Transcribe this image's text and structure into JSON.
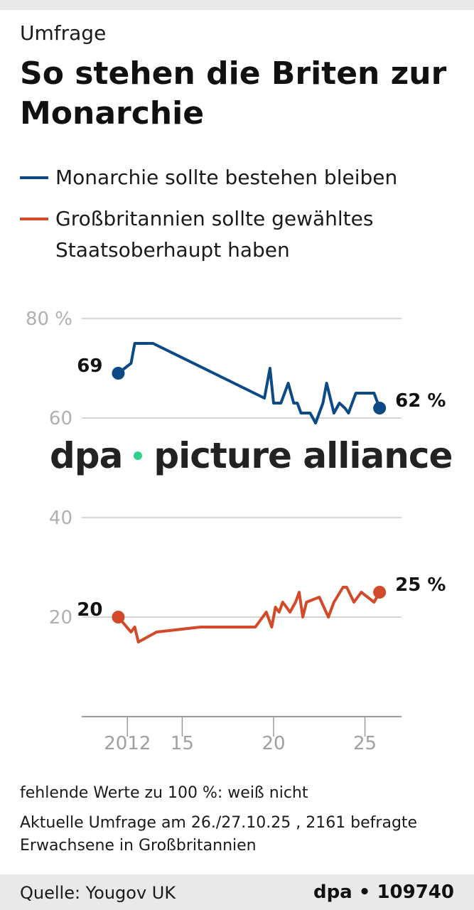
{
  "kicker": "Umfrage",
  "title": "So stehen die Briten zur Monarchie",
  "legend": [
    {
      "label": "Monarchie sollte bestehen bleiben",
      "color": "#0b4a86"
    },
    {
      "label": "Großbritannien sollte gewähltes Staatsoberhaupt haben",
      "color": "#d24a2a"
    }
  ],
  "watermark": {
    "left": "dpa",
    "right": "picture alliance"
  },
  "notes": {
    "line1": "fehlende Werte zu 100 %: weiß nicht",
    "line2": "Aktuelle Umfrage am 26./27.10.25 , 2161 befragte Erwachsene in Großbritannien"
  },
  "footer": {
    "source": "Quelle: Yougov UK",
    "credit": "dpa • 109740"
  },
  "chart_data": {
    "type": "line",
    "ylim": [
      0,
      80
    ],
    "xlim": [
      2009.5,
      2027
    ],
    "yticks": [
      {
        "value": 80,
        "label": "80 %"
      },
      {
        "value": 60,
        "label": "60"
      },
      {
        "value": 40,
        "label": "40"
      },
      {
        "value": 20,
        "label": "20"
      }
    ],
    "xticks": [
      {
        "value": 2012,
        "label": "2012"
      },
      {
        "value": 2015,
        "label": "15"
      },
      {
        "value": 2020,
        "label": "20"
      },
      {
        "value": 2025,
        "label": "25"
      }
    ],
    "series": [
      {
        "name": "Monarchie sollte bestehen bleiben",
        "color": "#0b4a86",
        "start_label": "69",
        "end_label": "62 %",
        "points": [
          [
            2011.5,
            69
          ],
          [
            2012.2,
            71
          ],
          [
            2012.4,
            75
          ],
          [
            2013.4,
            75
          ],
          [
            2019.5,
            64
          ],
          [
            2019.8,
            70
          ],
          [
            2020.0,
            63
          ],
          [
            2020.4,
            63
          ],
          [
            2020.8,
            67
          ],
          [
            2021.1,
            63
          ],
          [
            2021.3,
            63
          ],
          [
            2021.5,
            61
          ],
          [
            2022.0,
            61
          ],
          [
            2022.3,
            59
          ],
          [
            2022.7,
            63
          ],
          [
            2022.9,
            67
          ],
          [
            2023.3,
            61
          ],
          [
            2023.6,
            63
          ],
          [
            2023.9,
            62
          ],
          [
            2024.1,
            61
          ],
          [
            2024.5,
            65
          ],
          [
            2025.0,
            65
          ],
          [
            2025.5,
            65
          ],
          [
            2025.8,
            62
          ]
        ]
      },
      {
        "name": "Großbritannien sollte gewähltes Staatsoberhaupt haben",
        "color": "#d24a2a",
        "start_label": "20",
        "end_label": "25 %",
        "points": [
          [
            2011.5,
            20
          ],
          [
            2012.2,
            17
          ],
          [
            2012.4,
            18
          ],
          [
            2012.6,
            15
          ],
          [
            2013.6,
            17
          ],
          [
            2016.0,
            18
          ],
          [
            2019.0,
            18
          ],
          [
            2019.6,
            21
          ],
          [
            2019.9,
            18
          ],
          [
            2020.1,
            22
          ],
          [
            2020.3,
            21
          ],
          [
            2020.5,
            23
          ],
          [
            2020.9,
            21
          ],
          [
            2021.2,
            23
          ],
          [
            2021.4,
            25
          ],
          [
            2021.6,
            20
          ],
          [
            2021.8,
            23
          ],
          [
            2022.5,
            24
          ],
          [
            2023.0,
            20
          ],
          [
            2023.3,
            23
          ],
          [
            2023.8,
            26
          ],
          [
            2024.0,
            26
          ],
          [
            2024.4,
            23
          ],
          [
            2024.8,
            25
          ],
          [
            2025.5,
            23
          ],
          [
            2025.8,
            25
          ]
        ]
      }
    ]
  }
}
